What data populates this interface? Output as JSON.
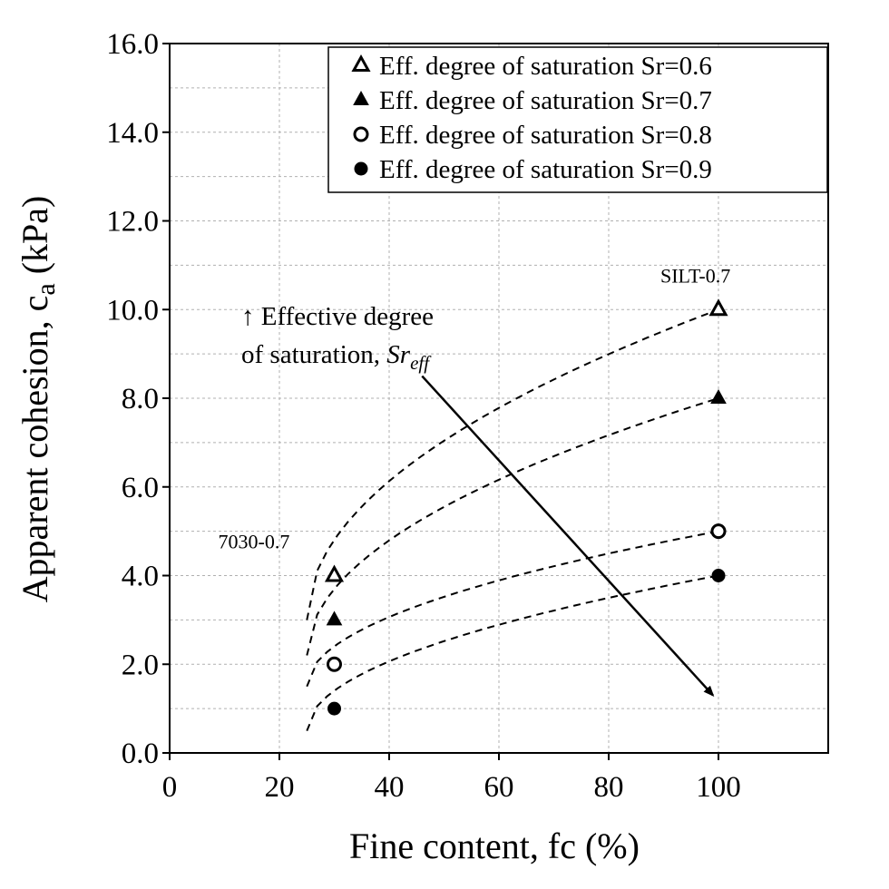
{
  "chart_data": {
    "type": "scatter",
    "xlabel": "Fine content, fc (%)",
    "ylabel_main": "Apparent cohesion, c",
    "ylabel_sub": "a",
    "ylabel_unit": " (kPa)",
    "xlim": [
      0,
      120
    ],
    "ylim": [
      0,
      16
    ],
    "x_ticks": [
      0,
      20,
      40,
      60,
      80,
      100
    ],
    "x_tick_labels": [
      "0",
      "20",
      "40",
      "60",
      "80",
      "100"
    ],
    "y_ticks": [
      0,
      2,
      4,
      6,
      8,
      10,
      12,
      14,
      16
    ],
    "y_tick_labels": [
      "0.0",
      "2.0",
      "4.0",
      "6.0",
      "8.0",
      "10.0",
      "12.0",
      "14.0",
      "16.0"
    ],
    "grid": true,
    "legend_position": "top-right",
    "series": [
      {
        "name": "Eff. degree of saturation Sr=0.6",
        "marker": "triangle-open",
        "x": [
          30,
          100
        ],
        "y": [
          4.0,
          10.0
        ],
        "trend": {
          "x0": 25,
          "x1": 100,
          "y0": 3.0,
          "y1": 10.0
        }
      },
      {
        "name": "Eff. degree of saturation Sr=0.7",
        "marker": "triangle-filled",
        "x": [
          30,
          100
        ],
        "y": [
          3.0,
          8.0
        ],
        "trend": {
          "x0": 25,
          "x1": 100,
          "y0": 2.2,
          "y1": 8.0
        }
      },
      {
        "name": "Eff. degree of saturation Sr=0.8",
        "marker": "circle-open",
        "x": [
          30,
          100
        ],
        "y": [
          2.0,
          5.0
        ],
        "trend": {
          "x0": 25,
          "x1": 100,
          "y0": 1.5,
          "y1": 5.0
        }
      },
      {
        "name": "Eff. degree of saturation Sr=0.9",
        "marker": "circle-filled",
        "x": [
          30,
          100
        ],
        "y": [
          1.0,
          4.0
        ],
        "trend": {
          "x0": 25,
          "x1": 100,
          "y0": 0.5,
          "y1": 4.0
        }
      }
    ],
    "annotations": {
      "silt": {
        "text": "SILT-0.7",
        "x": 100,
        "y": 10.0
      },
      "mix": {
        "text": "7030-0.7",
        "x": 30,
        "y": 4.0
      },
      "arrow_line1": "↑ Effective degree",
      "arrow_line2": "of saturation, ",
      "arrow_sr": "Sr",
      "arrow_sub": "eff",
      "arrow": {
        "x0": 46,
        "y0": 8.5,
        "x1": 99,
        "y1": 1.3
      }
    }
  }
}
